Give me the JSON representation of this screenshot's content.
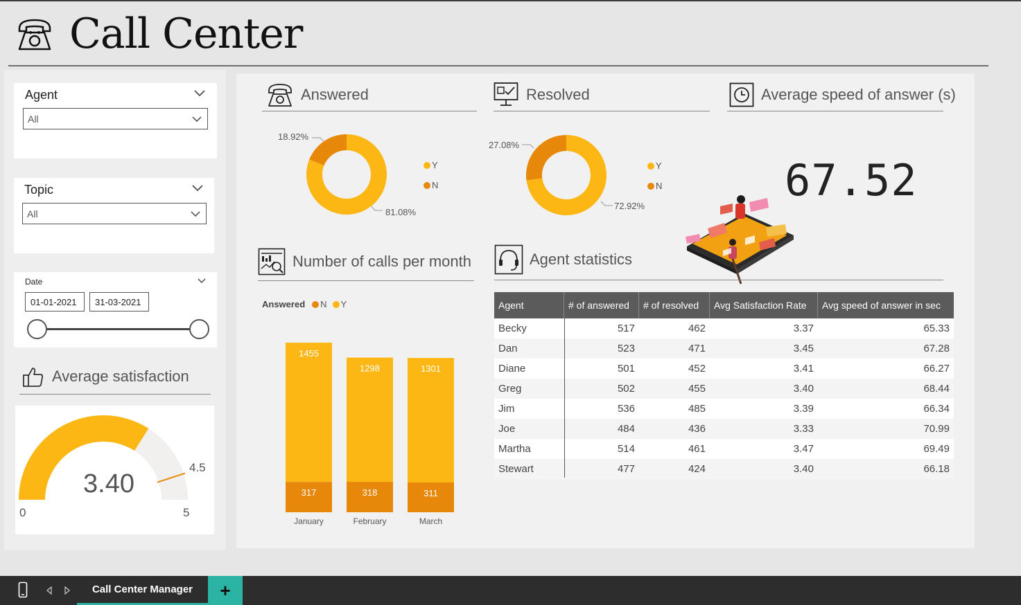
{
  "header": {
    "title": "Call Center"
  },
  "filters": {
    "agent": {
      "label": "Agent",
      "value": "All"
    },
    "topic": {
      "label": "Topic",
      "value": "All"
    },
    "date": {
      "label": "Date",
      "start": "01-01-2021",
      "end": "31-03-2021",
      "range_fraction": [
        0,
        1
      ]
    }
  },
  "avg_satisfaction": {
    "title": "Average satisfaction",
    "value": "3.40",
    "min": "0",
    "max": "5",
    "target": "4.5",
    "value_num": 3.4,
    "min_num": 0,
    "max_num": 5,
    "target_num": 4.5
  },
  "answered": {
    "title": "Answered",
    "legend": [
      "Y",
      "N"
    ],
    "pct_y": "81.08%",
    "pct_n": "18.92%",
    "y_val": 81.08,
    "n_val": 18.92
  },
  "resolved": {
    "title": "Resolved",
    "legend": [
      "Y",
      "N"
    ],
    "pct_y": "72.92%",
    "pct_n": "27.08%",
    "y_val": 72.92,
    "n_val": 27.08
  },
  "avg_speed": {
    "title": "Average speed of answer (s)",
    "value": "67.52"
  },
  "calls_per_month": {
    "title": "Number of calls per month",
    "legend_title": "Answered",
    "legend": [
      "N",
      "Y"
    ]
  },
  "agent_stats": {
    "title": "Agent statistics",
    "columns": [
      "Agent",
      "# of answered",
      "# of resolved",
      "Avg Satisfaction Rate",
      "Avg speed of answer in sec"
    ],
    "rows": [
      [
        "Becky",
        "517",
        "462",
        "3.37",
        "65.33"
      ],
      [
        "Dan",
        "523",
        "471",
        "3.45",
        "67.28"
      ],
      [
        "Diane",
        "501",
        "452",
        "3.41",
        "66.27"
      ],
      [
        "Greg",
        "502",
        "455",
        "3.40",
        "68.44"
      ],
      [
        "Jim",
        "536",
        "485",
        "3.39",
        "66.34"
      ],
      [
        "Joe",
        "484",
        "436",
        "3.33",
        "70.99"
      ],
      [
        "Martha",
        "514",
        "461",
        "3.47",
        "69.49"
      ],
      [
        "Stewart",
        "477",
        "424",
        "3.40",
        "66.18"
      ]
    ]
  },
  "chart_data": [
    {
      "type": "pie",
      "title": "Answered",
      "categories": [
        "Y",
        "N"
      ],
      "values": [
        81.08,
        18.92
      ]
    },
    {
      "type": "pie",
      "title": "Resolved",
      "categories": [
        "Y",
        "N"
      ],
      "values": [
        72.92,
        27.08
      ]
    },
    {
      "type": "bar",
      "title": "Number of calls per month",
      "categories": [
        "January",
        "February",
        "March"
      ],
      "series": [
        {
          "name": "N",
          "values": [
            317,
            318,
            311
          ]
        },
        {
          "name": "Y",
          "values": [
            1455,
            1298,
            1301
          ]
        }
      ],
      "stacked": true,
      "legend": "top-left"
    }
  ],
  "colors": {
    "accent": "#fcb714",
    "secondary": "#e8880a",
    "track": "#f1f0ef",
    "teal": "#2bb3a3"
  },
  "footer": {
    "tab_label": "Call Center Manager",
    "add_label": "+"
  }
}
